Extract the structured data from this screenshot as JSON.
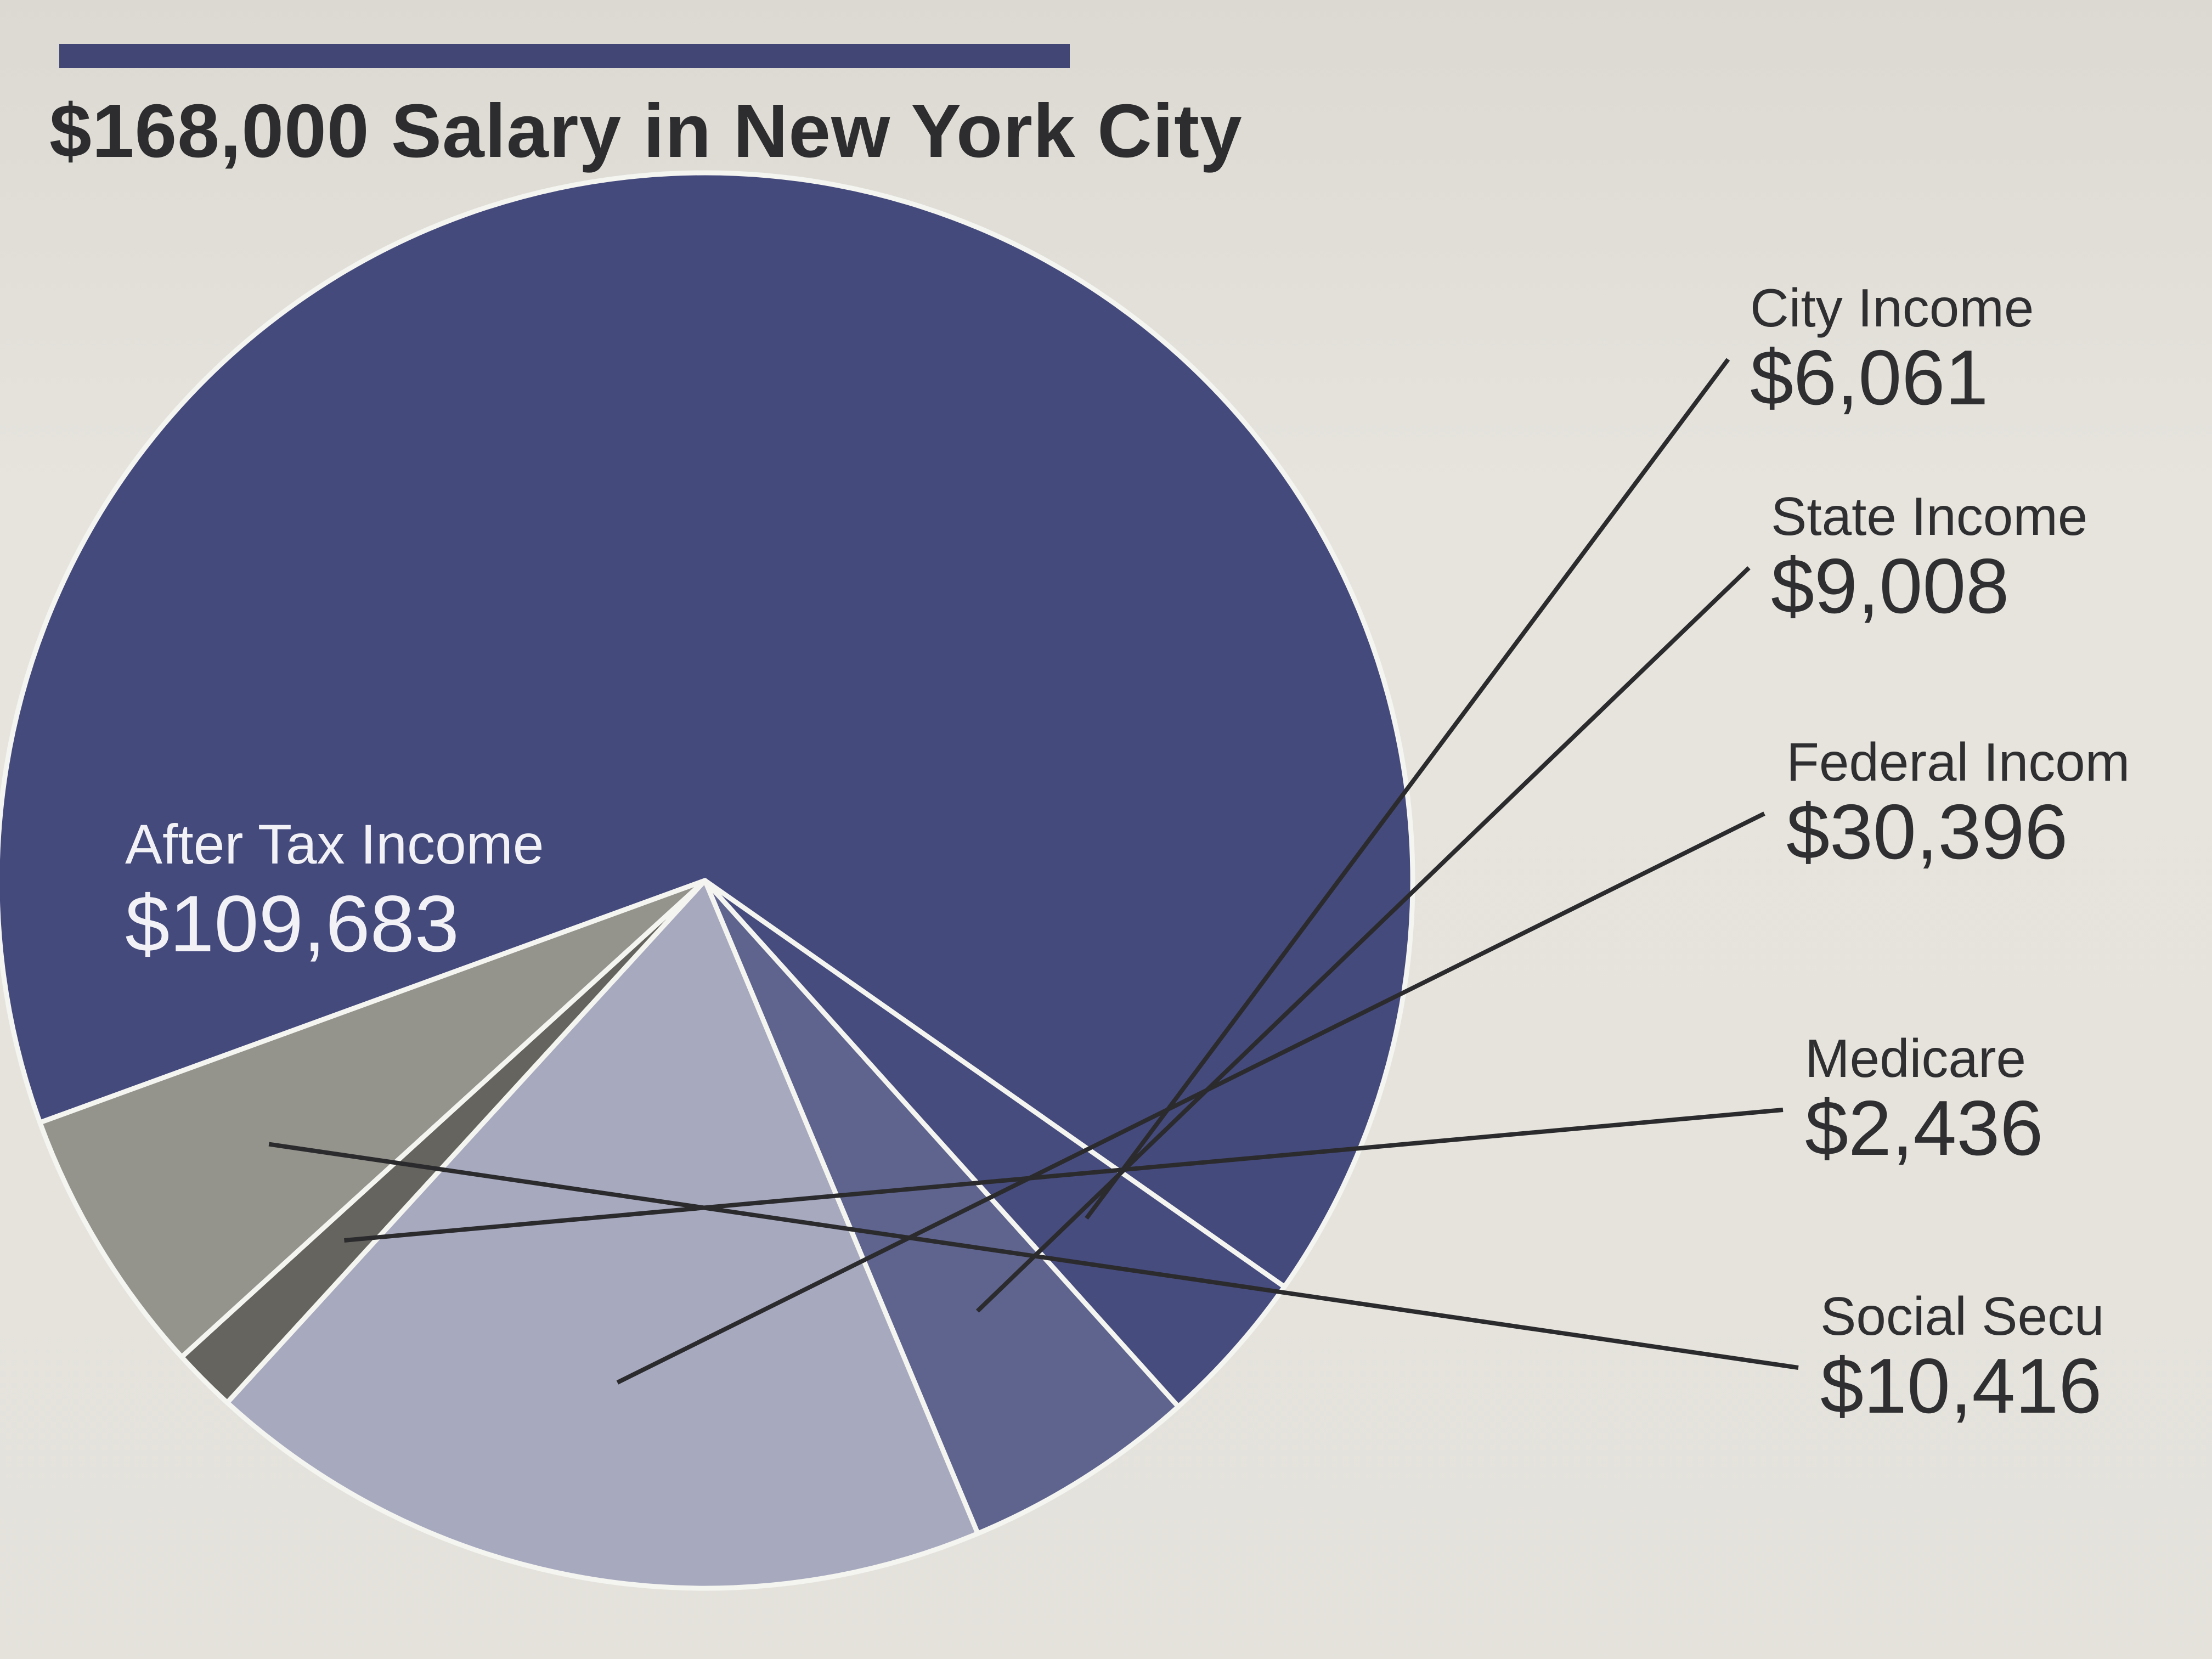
{
  "chart_data": {
    "type": "pie",
    "title": "$168,000 Salary in New York City",
    "slices": [
      {
        "label": "After Tax Income",
        "value": 109683,
        "display": "$109,683",
        "color": "#454a7d"
      },
      {
        "label": "City Income",
        "value": 6061,
        "display": "$6,061",
        "color": "#474c7e"
      },
      {
        "label": "State Income",
        "value": 9008,
        "display": "$9,008",
        "color": "#5f648f"
      },
      {
        "label": "Federal Incom",
        "value": 30396,
        "display": "$30,396",
        "color": "#a7a9bf"
      },
      {
        "label": "Medicare",
        "value": 2436,
        "display": "$2,436",
        "color": "#66645f"
      },
      {
        "label": "Social Secu",
        "value": 10416,
        "display": "$10,416",
        "color": "#94938c"
      }
    ]
  }
}
